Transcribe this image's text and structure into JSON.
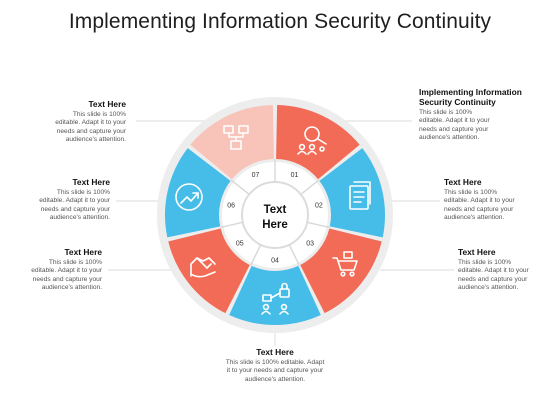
{
  "title": "Implementing Information Security Continuity",
  "center_label_line1": "Text",
  "center_label_line2": "Here",
  "colors": {
    "coral": "#F26B57",
    "blue": "#45BDE8",
    "pink": "#F8C3B8",
    "ring": "#EDEDED",
    "segment_line": "#D8D8D8"
  },
  "segments": [
    {
      "number": "01",
      "color": "#F26B57",
      "icon": "magnifier-people-icon"
    },
    {
      "number": "02",
      "color": "#45BDE8",
      "icon": "document-stack-icon"
    },
    {
      "number": "03",
      "color": "#F26B57",
      "icon": "shopping-cart-icon"
    },
    {
      "number": "04",
      "color": "#45BDE8",
      "icon": "lock-network-icon"
    },
    {
      "number": "05",
      "color": "#F26B57",
      "icon": "handshake-icon"
    },
    {
      "number": "06",
      "color": "#45BDE8",
      "icon": "growth-arrow-icon"
    },
    {
      "number": "07",
      "color": "#F8C3B8",
      "icon": "org-chart-icon"
    }
  ],
  "callouts": {
    "top_right": {
      "title_line1": "Implementing Information",
      "title_line2": "Security Continuity",
      "desc_line1": "This slide is 100%",
      "desc_line2": "editable. Adapt it to your",
      "desc_line3": "needs and capture your",
      "desc_line4": "audience's attention."
    },
    "right_mid": {
      "title": "Text Here",
      "desc_line1": "This slide is 100%",
      "desc_line2": "editable. Adapt it to your",
      "desc_line3": "needs and capture your",
      "desc_line4": "audience's attention."
    },
    "right_low": {
      "title": "Text Here",
      "desc_line1": "This slide is 100%",
      "desc_line2": "editable. Adapt it to your",
      "desc_line3": "needs and capture your",
      "desc_line4": "audience's attention."
    },
    "bottom": {
      "title": "Text Here",
      "desc_line1": "This slide is 100% editable. Adapt",
      "desc_line2": "it to your needs and capture your",
      "desc_line3": "audience's attention."
    },
    "left_low": {
      "title": "Text Here",
      "desc_line1": "This slide is 100%",
      "desc_line2": "editable. Adapt it to your",
      "desc_line3": "needs and capture your",
      "desc_line4": "audience's attention."
    },
    "left_mid": {
      "title": "Text Here",
      "desc_line1": "This slide is 100%",
      "desc_line2": "editable. Adapt it to your",
      "desc_line3": "needs and capture your",
      "desc_line4": "audience's attention."
    },
    "top_left": {
      "title": "Text Here",
      "desc_line1": "This slide is 100%",
      "desc_line2": "editable. Adapt it to your",
      "desc_line3": "needs and capture your",
      "desc_line4": "audience's attention."
    }
  }
}
